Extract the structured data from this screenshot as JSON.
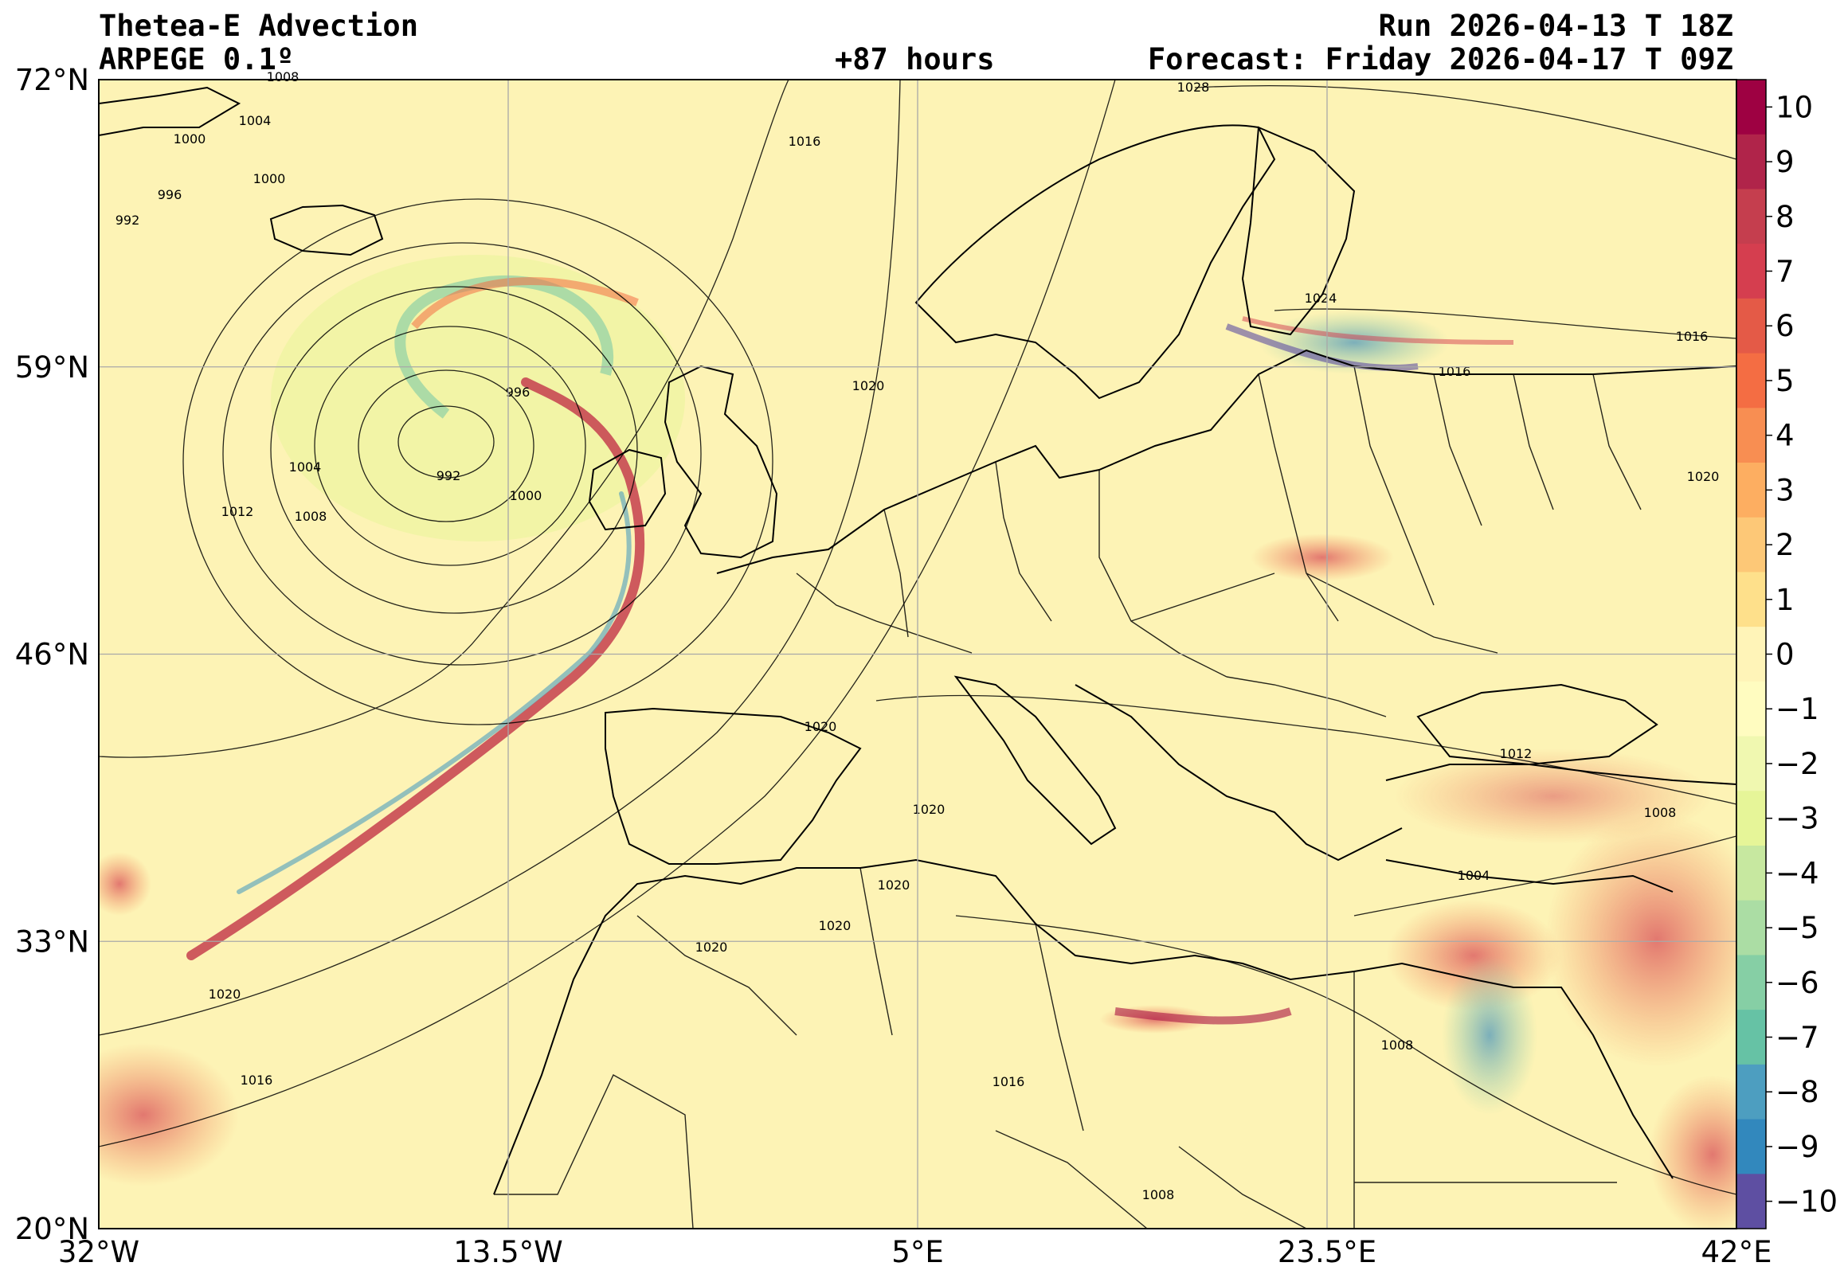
{
  "header": {
    "title_line1": "Thetea-E Advection",
    "title_line2": "ARPEGE 0.1º",
    "run": "Run 2026-04-13 T 18Z",
    "lead": "+87 hours",
    "valid": "Forecast: Friday 2026-04-17 T 09Z"
  },
  "map": {
    "lon_ticks": [
      "32°W",
      "13.5°W",
      "5°E",
      "23.5°E",
      "42°E"
    ],
    "lat_ticks": [
      "72°N",
      "59°N",
      "46°N",
      "33°N",
      "20°N"
    ],
    "extent": {
      "lon": [
        -32,
        42
      ],
      "lat": [
        20,
        72
      ]
    },
    "isobar_labels": [
      "1008",
      "1004",
      "1000",
      "1000",
      "996",
      "992",
      "996",
      "992",
      "1004",
      "1012",
      "1008",
      "1000",
      "1016",
      "1020",
      "1028",
      "1024",
      "1016",
      "1016",
      "1020",
      "1020",
      "1020",
      "1020",
      "1020",
      "1020",
      "1020",
      "1016",
      "1012",
      "1008",
      "1004",
      "1016",
      "1008",
      "1008"
    ]
  },
  "colorbar": {
    "ticks": [
      "10",
      "9",
      "8",
      "7",
      "6",
      "5",
      "4",
      "3",
      "2",
      "1",
      "0",
      "−1",
      "−2",
      "−3",
      "−4",
      "−5",
      "−6",
      "−7",
      "−8",
      "−9",
      "−10"
    ],
    "colors": [
      "#9e0142",
      "#b0244a",
      "#c53e4e",
      "#d53e4f",
      "#e45a47",
      "#f46d43",
      "#f88e52",
      "#fdae61",
      "#fdc877",
      "#fee08b",
      "#fff4b8",
      "#fffcc0",
      "#f0f8b0",
      "#e6f598",
      "#c7e8a0",
      "#abdda4",
      "#86cfa5",
      "#66c2a5",
      "#4d9ec0",
      "#3288bd",
      "#5e4fa2"
    ]
  },
  "style": {
    "land_outline": "#000000",
    "isobar": "#000000",
    "grid": "#a8a8a8",
    "field_base": "#fdf3b5"
  }
}
